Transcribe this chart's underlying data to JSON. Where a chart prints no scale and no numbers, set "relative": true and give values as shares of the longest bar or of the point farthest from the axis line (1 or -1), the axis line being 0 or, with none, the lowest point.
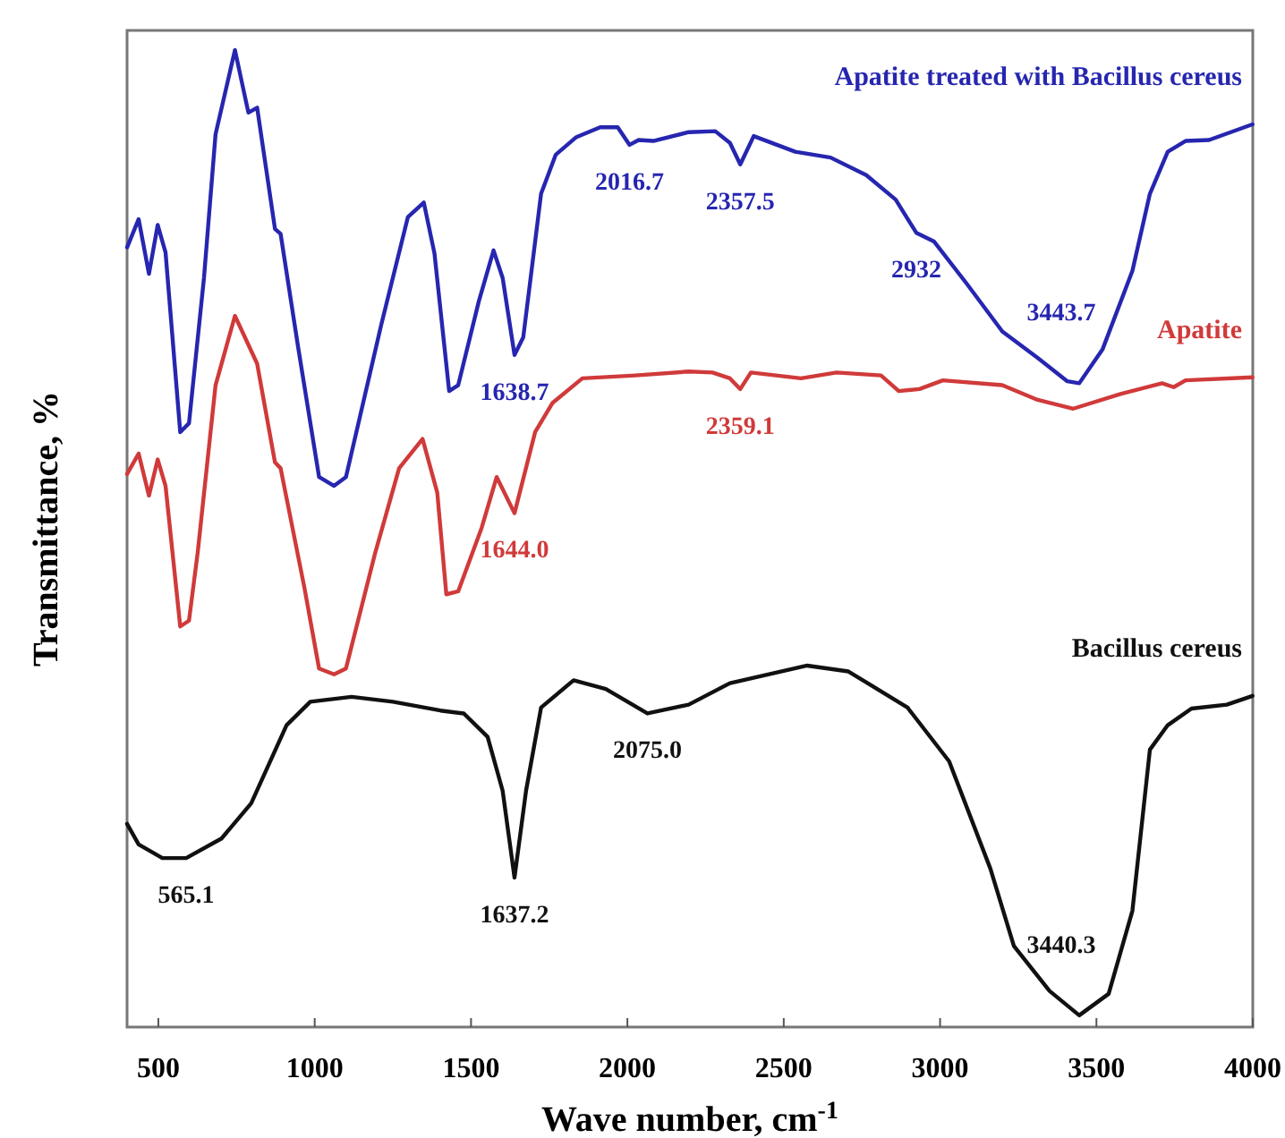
{
  "chart_data": {
    "type": "line",
    "relative": true,
    "xlabel": "Wave number, cm$^{-1}$",
    "ylabel": "Transmittance, %",
    "xlim": [
      400,
      4000
    ],
    "xticks": [
      500,
      1000,
      1500,
      2000,
      2500,
      3000,
      3500,
      4000
    ],
    "grid": false,
    "marker": "none",
    "line_style": "solid",
    "series": [
      {
        "name": "Apatite treated with Bacillus cereus",
        "color": "#2626b0",
        "x": [
          400,
          437,
          470,
          498,
          523,
          570,
          598,
          646,
          683,
          745,
          788,
          816,
          873,
          891,
          948,
          1014,
          1062,
          1100,
          1213,
          1298,
          1349,
          1383,
          1430,
          1459,
          1525,
          1572,
          1601,
          1639,
          1667,
          1724,
          1771,
          1837,
          1913,
          1969,
          2007,
          2036,
          2083,
          2196,
          2281,
          2328,
          2361,
          2404,
          2537,
          2650,
          2764,
          2858,
          2924,
          2981,
          3085,
          3199,
          3312,
          3407,
          3445,
          3520,
          3615,
          3671,
          3728,
          3785,
          3860,
          3999
        ],
        "values": [
          0.798,
          0.827,
          0.771,
          0.821,
          0.793,
          0.609,
          0.618,
          0.767,
          0.914,
          1,
          0.936,
          0.941,
          0.817,
          0.812,
          0.694,
          0.563,
          0.554,
          0.563,
          0.719,
          0.829,
          0.844,
          0.792,
          0.651,
          0.657,
          0.743,
          0.795,
          0.767,
          0.688,
          0.706,
          0.853,
          0.893,
          0.911,
          0.921,
          0.921,
          0.903,
          0.908,
          0.907,
          0.916,
          0.917,
          0.905,
          0.883,
          0.912,
          0.896,
          0.89,
          0.872,
          0.847,
          0.813,
          0.804,
          0.761,
          0.712,
          0.685,
          0.661,
          0.659,
          0.694,
          0.774,
          0.853,
          0.896,
          0.907,
          0.908,
          0.924
        ]
      },
      {
        "name": "Apatite",
        "color": "#d03a3a",
        "x": [
          400,
          437,
          470,
          498,
          523,
          570,
          598,
          626,
          683,
          745,
          816,
          873,
          891,
          967,
          1014,
          1062,
          1100,
          1194,
          1270,
          1345,
          1392,
          1421,
          1459,
          1534,
          1582,
          1639,
          1705,
          1761,
          1856,
          2026,
          2196,
          2272,
          2328,
          2361,
          2395,
          2555,
          2669,
          2811,
          2868,
          2934,
          3009,
          3199,
          3312,
          3426,
          3577,
          3710,
          3747,
          3785,
          3999
        ],
        "values": [
          0.566,
          0.587,
          0.544,
          0.581,
          0.554,
          0.41,
          0.416,
          0.486,
          0.657,
          0.728,
          0.679,
          0.578,
          0.572,
          0.45,
          0.367,
          0.361,
          0.367,
          0.486,
          0.572,
          0.602,
          0.547,
          0.443,
          0.446,
          0.511,
          0.563,
          0.526,
          0.609,
          0.639,
          0.664,
          0.667,
          0.671,
          0.67,
          0.664,
          0.653,
          0.67,
          0.664,
          0.67,
          0.667,
          0.651,
          0.653,
          0.662,
          0.657,
          0.642,
          0.633,
          0.648,
          0.659,
          0.655,
          0.662,
          0.665
        ]
      },
      {
        "name": "Bacillus cereus",
        "color": "#111111",
        "x": [
          400,
          437,
          513,
          589,
          702,
          797,
          910,
          986,
          1118,
          1250,
          1402,
          1477,
          1553,
          1601,
          1639,
          1676,
          1724,
          1828,
          1931,
          2064,
          2196,
          2328,
          2575,
          2707,
          2896,
          3029,
          3161,
          3236,
          3350,
          3445,
          3539,
          3615,
          3671,
          3728,
          3804,
          3917,
          3999
        ],
        "values": [
          0.208,
          0.187,
          0.173,
          0.173,
          0.193,
          0.229,
          0.309,
          0.333,
          0.338,
          0.333,
          0.324,
          0.321,
          0.297,
          0.242,
          0.153,
          0.242,
          0.327,
          0.355,
          0.346,
          0.321,
          0.33,
          0.352,
          0.37,
          0.364,
          0.327,
          0.272,
          0.162,
          0.083,
          0.037,
          0.012,
          0.034,
          0.119,
          0.284,
          0.309,
          0.326,
          0.33,
          0.339
        ]
      }
    ],
    "annotations": [
      {
        "text": "2016.7",
        "x": 2007,
        "y": 0.903
      },
      {
        "text": "2357.5",
        "x": 2361,
        "y": 0.883
      },
      {
        "text": "2932",
        "x": 2924,
        "y": 0.813
      },
      {
        "text": "3443.7",
        "x": 3445,
        "y": 0.659
      },
      {
        "text": "1638.7",
        "x": 1639,
        "y": 0.688
      },
      {
        "text": "1644.0",
        "x": 1639,
        "y": 0.526
      },
      {
        "text": "2359.1",
        "x": 2361,
        "y": 0.653
      },
      {
        "text": "565.1",
        "x": 589,
        "y": 0.173
      },
      {
        "text": "1637.2",
        "x": 1639,
        "y": 0.153
      },
      {
        "text": "2075.0",
        "x": 2064,
        "y": 0.321
      },
      {
        "text": "3440.3",
        "x": 3445,
        "y": 0.012
      }
    ]
  }
}
